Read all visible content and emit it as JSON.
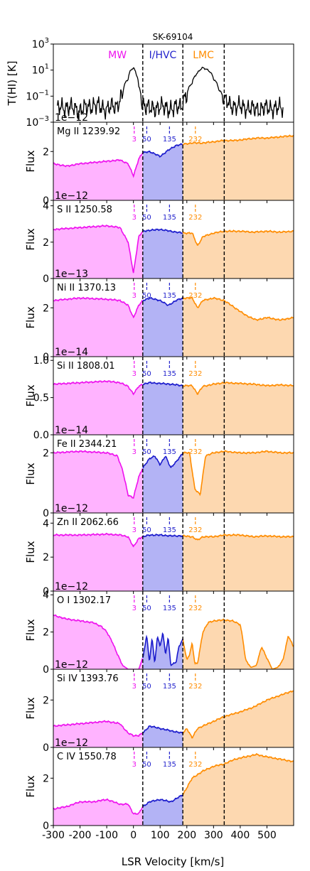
{
  "title": "SK-69104",
  "xlabel": "LSR Velocity [km/s]",
  "x_ticks": [
    "-300",
    "-200",
    "-100",
    "0",
    "100",
    "200",
    "300",
    "400",
    "500"
  ],
  "x_tick_values": [
    -300,
    -200,
    -100,
    0,
    100,
    200,
    300,
    400,
    500
  ],
  "x_range": [
    -300,
    600
  ],
  "boundaries": [
    35,
    185,
    340
  ],
  "region_labels": [
    {
      "text": "MW",
      "v": -60,
      "color": "#ee11ee"
    },
    {
      "text": "I/HVC",
      "v": 110,
      "color": "#2222cc"
    },
    {
      "text": "LMC",
      "v": 262,
      "color": "#ff8c00"
    }
  ],
  "component_markers": [
    {
      "v": 3,
      "label": "3",
      "color": "#ee11ee"
    },
    {
      "v": 50,
      "label": "50",
      "color": "#2222cc"
    },
    {
      "v": 135,
      "label": "135",
      "color": "#2222cc"
    },
    {
      "v": 232,
      "label": "232",
      "color": "#ff8c00"
    }
  ],
  "colors": {
    "mw_line": "#ee11ee",
    "mw_fill": "#ffb3ff",
    "ivc_line": "#1a1acc",
    "ivc_fill": "#b3b3f5",
    "lmc_line": "#ff8c00",
    "lmc_fill": "#fdd8b0",
    "hi_line": "#000000"
  },
  "chart_data": [
    {
      "type": "line",
      "name": "H I 21cm",
      "ylabel": "T(HI) [K]",
      "yscale": "log",
      "yticks": [
        "10^3",
        "10^1",
        "10^-1",
        "10^-3"
      ],
      "ytick_values": [
        1000,
        10,
        0.1,
        0.001
      ],
      "ylim": [
        0.001,
        1000
      ],
      "x": [
        -300,
        -250,
        -200,
        -150,
        -100,
        -60,
        -40,
        -20,
        -10,
        0,
        10,
        20,
        30,
        40,
        60,
        100,
        150,
        180,
        200,
        220,
        240,
        260,
        280,
        300,
        320,
        340,
        360,
        400,
        450,
        500
      ],
      "values": [
        0.01,
        0.015,
        0.008,
        0.02,
        0.01,
        0.02,
        0.1,
        2,
        10,
        15,
        5,
        0.5,
        0.05,
        0.02,
        0.01,
        0.015,
        0.01,
        0.02,
        0.1,
        1,
        6,
        15,
        10,
        2,
        0.3,
        0.05,
        0.02,
        0.015,
        0.01,
        0.012
      ]
    },
    {
      "type": "area",
      "ion": "Mg II 1239.92",
      "ylabel": "Flux",
      "scale": "1e−12",
      "yticks": [
        "0",
        "2"
      ],
      "ytick_values": [
        0,
        2
      ],
      "ylim": [
        0,
        3.2
      ],
      "x": [
        -300,
        -250,
        -200,
        -150,
        -100,
        -50,
        -20,
        0,
        20,
        35,
        60,
        100,
        130,
        160,
        185,
        220,
        260,
        300,
        340,
        380,
        420,
        460,
        500,
        550,
        600
      ],
      "values": [
        1.5,
        1.4,
        1.5,
        1.55,
        1.6,
        1.65,
        1.5,
        1.0,
        1.7,
        1.95,
        2.0,
        1.8,
        2.05,
        2.25,
        2.3,
        2.35,
        2.35,
        2.4,
        2.45,
        2.45,
        2.5,
        2.55,
        2.55,
        2.6,
        2.65
      ]
    },
    {
      "type": "area",
      "ion": "S II 1250.58",
      "ylabel": "Flux",
      "scale": "1e−12",
      "yticks": [
        "0",
        "2",
        "4"
      ],
      "ytick_values": [
        0,
        2,
        4
      ],
      "ylim": [
        0,
        4.3
      ],
      "x": [
        -300,
        -200,
        -100,
        -50,
        -20,
        0,
        20,
        35,
        60,
        100,
        140,
        185,
        220,
        240,
        260,
        300,
        340,
        400,
        450,
        500,
        550,
        600
      ],
      "values": [
        2.7,
        2.8,
        2.9,
        2.8,
        2.0,
        0.3,
        2.3,
        2.6,
        2.65,
        2.7,
        2.6,
        2.5,
        2.5,
        1.8,
        2.3,
        2.5,
        2.6,
        2.6,
        2.55,
        2.6,
        2.55,
        2.6
      ]
    },
    {
      "type": "area",
      "ion": "Ni II 1370.13",
      "ylabel": "Flux",
      "scale": "1e−13",
      "yticks": [
        "0",
        "2"
      ],
      "ytick_values": [
        0,
        2
      ],
      "ylim": [
        0,
        3.2
      ],
      "x": [
        -300,
        -200,
        -100,
        -50,
        -20,
        0,
        20,
        35,
        60,
        100,
        130,
        160,
        185,
        220,
        240,
        260,
        300,
        340,
        380,
        420,
        460,
        500,
        550,
        600
      ],
      "values": [
        2.3,
        2.4,
        2.35,
        2.3,
        2.1,
        1.6,
        2.1,
        2.3,
        2.4,
        2.3,
        2.1,
        2.3,
        2.4,
        2.4,
        2.0,
        2.3,
        2.4,
        2.3,
        2.0,
        1.7,
        1.5,
        1.6,
        1.5,
        1.6
      ]
    },
    {
      "type": "area",
      "ion": "Si II 1808.01",
      "ylabel": "Flux",
      "scale": "1e−14",
      "yticks": [
        "0.0",
        "0.5",
        "1.0"
      ],
      "ytick_values": [
        0,
        0.5,
        1.0
      ],
      "ylim": [
        0,
        1.05
      ],
      "x": [
        -300,
        -200,
        -100,
        -50,
        -20,
        0,
        20,
        35,
        60,
        100,
        140,
        185,
        220,
        240,
        260,
        300,
        340,
        400,
        450,
        500,
        550,
        600
      ],
      "values": [
        0.68,
        0.7,
        0.72,
        0.7,
        0.65,
        0.55,
        0.65,
        0.68,
        0.7,
        0.69,
        0.68,
        0.66,
        0.66,
        0.55,
        0.65,
        0.68,
        0.7,
        0.69,
        0.68,
        0.66,
        0.67,
        0.66
      ]
    },
    {
      "type": "area",
      "ion": "Fe II 2344.21",
      "ylabel": "Flux",
      "scale": "1e−14",
      "yticks": [
        "0",
        "2"
      ],
      "ytick_values": [
        0,
        2
      ],
      "ylim": [
        0,
        2.6
      ],
      "x": [
        -300,
        -200,
        -100,
        -60,
        -40,
        -20,
        0,
        20,
        35,
        60,
        80,
        100,
        120,
        140,
        160,
        185,
        210,
        230,
        250,
        270,
        300,
        340,
        400,
        450,
        500,
        550,
        600
      ],
      "values": [
        2.0,
        2.05,
        2.0,
        1.9,
        1.4,
        0.6,
        0.5,
        1.2,
        1.5,
        1.8,
        1.9,
        1.6,
        1.9,
        1.5,
        1.7,
        2.0,
        2.0,
        0.8,
        0.6,
        1.9,
        2.0,
        2.05,
        2.0,
        2.0,
        2.05,
        2.0,
        2.0
      ]
    },
    {
      "type": "area",
      "ion": "Zn II 2062.66",
      "ylabel": "Flux",
      "scale": "1e−12",
      "yticks": [
        "0",
        "2",
        "4"
      ],
      "ytick_values": [
        0,
        2,
        4
      ],
      "ylim": [
        0,
        4.6
      ],
      "x": [
        -300,
        -200,
        -100,
        -50,
        -20,
        0,
        20,
        35,
        60,
        100,
        140,
        185,
        220,
        240,
        260,
        300,
        340,
        400,
        450,
        500,
        550,
        600
      ],
      "values": [
        3.3,
        3.3,
        3.35,
        3.3,
        3.2,
        2.6,
        3.1,
        3.2,
        3.3,
        3.3,
        3.25,
        3.25,
        3.2,
        3.0,
        3.2,
        3.2,
        3.3,
        3.3,
        3.2,
        3.25,
        3.2,
        3.2
      ]
    },
    {
      "type": "area",
      "ion": "O I 1302.17",
      "ylabel": "Flux",
      "scale": "1e−12",
      "yticks": [
        "0",
        "2",
        "4"
      ],
      "ytick_values": [
        0,
        2,
        4
      ],
      "ylim": [
        0,
        4.2
      ],
      "x": [
        -300,
        -250,
        -200,
        -150,
        -120,
        -100,
        -80,
        -60,
        -40,
        -20,
        0,
        20,
        35,
        50,
        60,
        70,
        80,
        90,
        100,
        110,
        120,
        130,
        140,
        150,
        160,
        170,
        185,
        200,
        210,
        220,
        230,
        240,
        260,
        280,
        300,
        340,
        370,
        400,
        410,
        420,
        440,
        460,
        480,
        500,
        520,
        540,
        560,
        580,
        600
      ],
      "values": [
        2.9,
        2.7,
        2.6,
        2.5,
        2.3,
        2.0,
        1.5,
        0.8,
        0.2,
        0.0,
        0.0,
        0.0,
        0.6,
        1.8,
        0.4,
        1.7,
        0.3,
        1.8,
        1.2,
        2.0,
        0.8,
        1.7,
        0.2,
        0.3,
        0.4,
        1.2,
        1.6,
        0.5,
        0.8,
        1.4,
        0.3,
        0.3,
        2.0,
        2.5,
        2.6,
        2.65,
        2.6,
        2.4,
        1.6,
        0.5,
        0.1,
        0.2,
        1.2,
        0.6,
        0.0,
        0.1,
        0.5,
        1.8,
        1.2
      ]
    },
    {
      "type": "area",
      "ion": "Si IV 1393.76",
      "ylabel": "Flux",
      "scale": "1e−12",
      "yticks": [
        "0",
        "2"
      ],
      "ytick_values": [
        0,
        2
      ],
      "ylim": [
        0,
        3.3
      ],
      "x": [
        -300,
        -200,
        -100,
        -50,
        -20,
        0,
        20,
        35,
        60,
        100,
        140,
        185,
        200,
        220,
        240,
        260,
        300,
        340,
        400,
        450,
        500,
        550,
        600
      ],
      "values": [
        0.9,
        1.0,
        1.1,
        1.0,
        0.6,
        0.5,
        0.5,
        0.6,
        0.9,
        0.8,
        0.7,
        0.6,
        0.8,
        0.4,
        0.8,
        0.9,
        1.1,
        1.3,
        1.5,
        1.7,
        2.0,
        2.2,
        2.4
      ]
    },
    {
      "type": "area",
      "ion": "C IV 1550.78",
      "ylabel": "Flux",
      "scale": "1e−12",
      "yticks": [
        "0",
        "2"
      ],
      "ytick_values": [
        0,
        2
      ],
      "ylim": [
        0,
        3.3
      ],
      "x": [
        -300,
        -250,
        -200,
        -150,
        -100,
        -50,
        -20,
        0,
        20,
        35,
        60,
        100,
        140,
        185,
        220,
        260,
        300,
        340,
        380,
        420,
        460,
        500,
        550,
        600
      ],
      "values": [
        0.7,
        0.8,
        1.0,
        1.0,
        1.1,
        0.9,
        0.9,
        0.5,
        0.5,
        0.8,
        1.0,
        1.1,
        1.0,
        1.3,
        2.0,
        2.3,
        2.5,
        2.6,
        2.8,
        2.9,
        3.0,
        2.9,
        2.8,
        2.7
      ]
    }
  ]
}
